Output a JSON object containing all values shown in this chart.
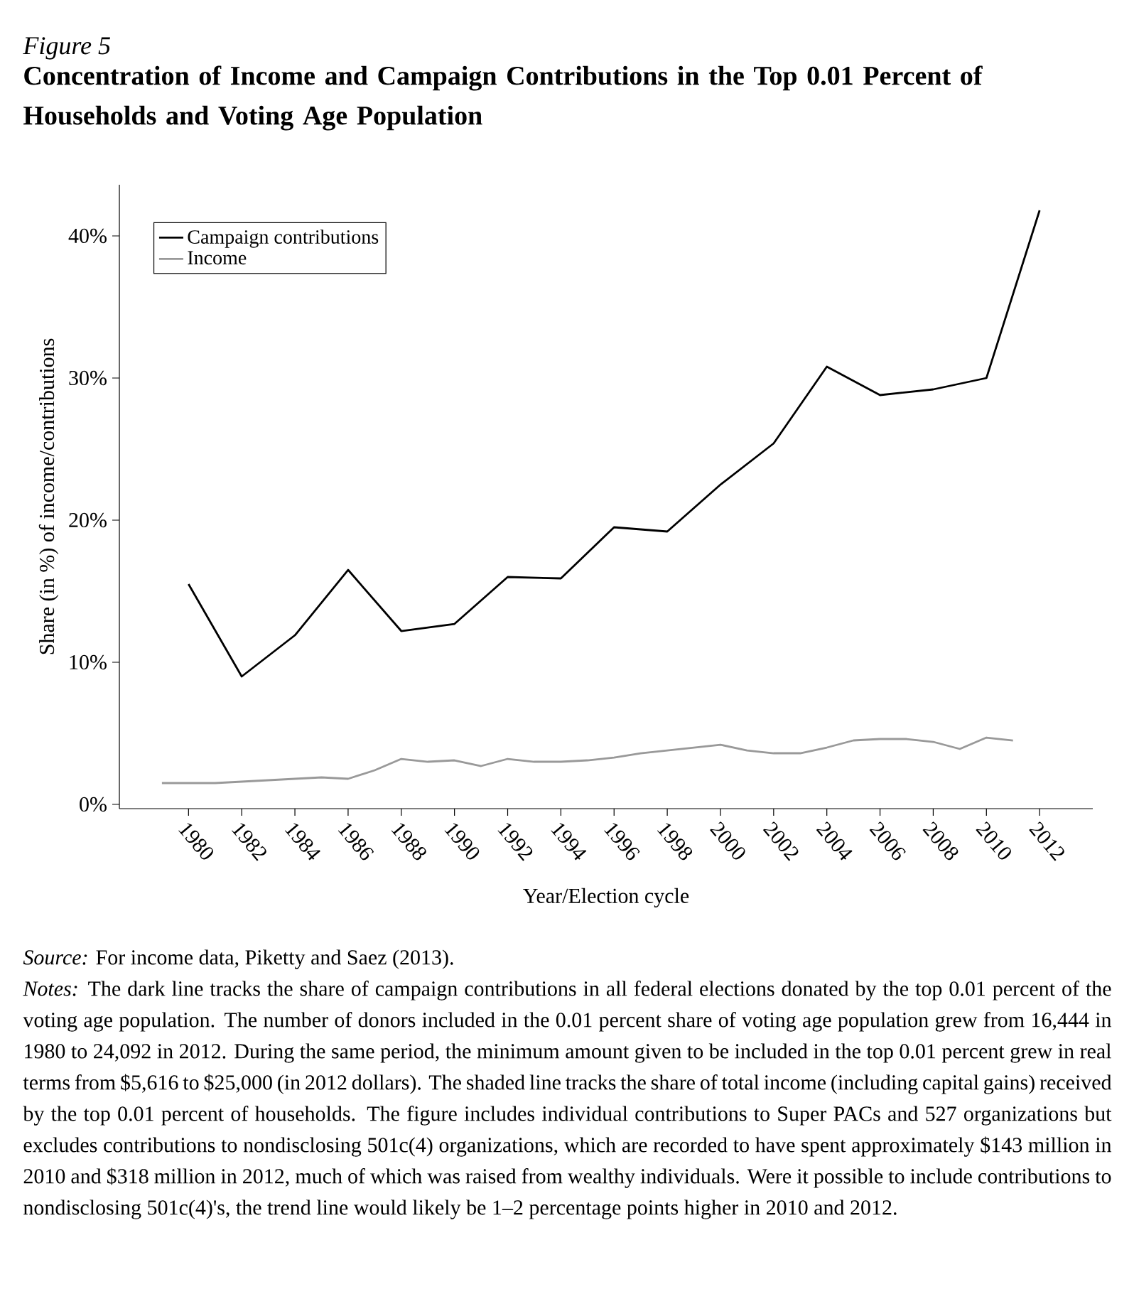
{
  "chart_data": {
    "type": "line",
    "title": "Figure 5",
    "subtitle": "Concentration of Income and Campaign Contributions in the Top 0.01 Percent of Households and Voting Age Population",
    "xlabel": "Year/Election cycle",
    "ylabel": "Share (in %) of income/contributions",
    "series": [
      {
        "name": "Campaign contributions",
        "color": "#000000",
        "x": [
          1980,
          1982,
          1984,
          1986,
          1988,
          1990,
          1992,
          1994,
          1996,
          1998,
          2000,
          2002,
          2004,
          2006,
          2008,
          2010,
          2012
        ],
        "values": [
          15.5,
          9.0,
          11.9,
          16.5,
          12.2,
          12.7,
          16.0,
          15.9,
          19.5,
          19.2,
          22.5,
          25.4,
          30.8,
          28.8,
          29.2,
          30.0,
          41.8
        ]
      },
      {
        "name": "Income",
        "color": "#999999",
        "x": [
          1979,
          1980,
          1981,
          1982,
          1983,
          1984,
          1985,
          1986,
          1987,
          1988,
          1989,
          1990,
          1991,
          1992,
          1993,
          1994,
          1995,
          1996,
          1997,
          1998,
          1999,
          2000,
          2001,
          2002,
          2003,
          2004,
          2005,
          2006,
          2007,
          2008,
          2009,
          2010,
          2011
        ],
        "values": [
          1.5,
          1.5,
          1.5,
          1.6,
          1.7,
          1.8,
          1.9,
          1.8,
          2.4,
          3.2,
          3.0,
          3.1,
          2.7,
          3.2,
          3.0,
          3.0,
          3.1,
          3.3,
          3.6,
          3.8,
          4.0,
          4.2,
          3.8,
          3.6,
          3.6,
          4.0,
          4.5,
          4.6,
          4.6,
          4.4,
          3.9,
          4.7,
          4.5
        ]
      }
    ],
    "xlim": [
      1977.4,
      2014.0
    ],
    "ylim": [
      -0.3,
      43.6
    ],
    "xticks": [
      1980,
      1982,
      1984,
      1986,
      1988,
      1990,
      1992,
      1994,
      1996,
      1998,
      2000,
      2002,
      2004,
      2006,
      2008,
      2010,
      2012
    ],
    "yticks": [
      {
        "value": 0,
        "label": "0%"
      },
      {
        "value": 10,
        "label": "10%"
      },
      {
        "value": 20,
        "label": "20%"
      },
      {
        "value": 30,
        "label": "30%"
      },
      {
        "value": 40,
        "label": "40%"
      }
    ],
    "legend": "top left",
    "grid": false,
    "marker": "none",
    "line_style": "solid",
    "annotations": [
      "*Source:* For income data, Piketty and Saez (2013).",
      "*Notes:* The dark line tracks the share of campaign contributions in all federal elections donated by the top 0.01 percent of the voting age population. The number of donors included in the 0.01 percent share of voting age population grew from 16,444 in 1980 to 24,092 in 2012. During the same period, the minimum amount given to be included in the top 0.01 percent grew in real terms from $5,616 to $25,000 (in 2012 dollars). The shaded line tracks the share of total income (including capital gains) received by the top 0.01 percent of households. The figure includes individual contributions to Super PACs and 527 organizations but excludes contributions to nondisclosing 501c(4) organizations, which are recorded to have spent approximately $143 million in 2010 and $318 million in 2012, much of which was raised from wealthy individuals. Were it possible to include contributions to nondisclosing 501c(4)'s, the trend line would likely be 1–2 percentage points higher in 2010 and 2012."
    ]
  }
}
